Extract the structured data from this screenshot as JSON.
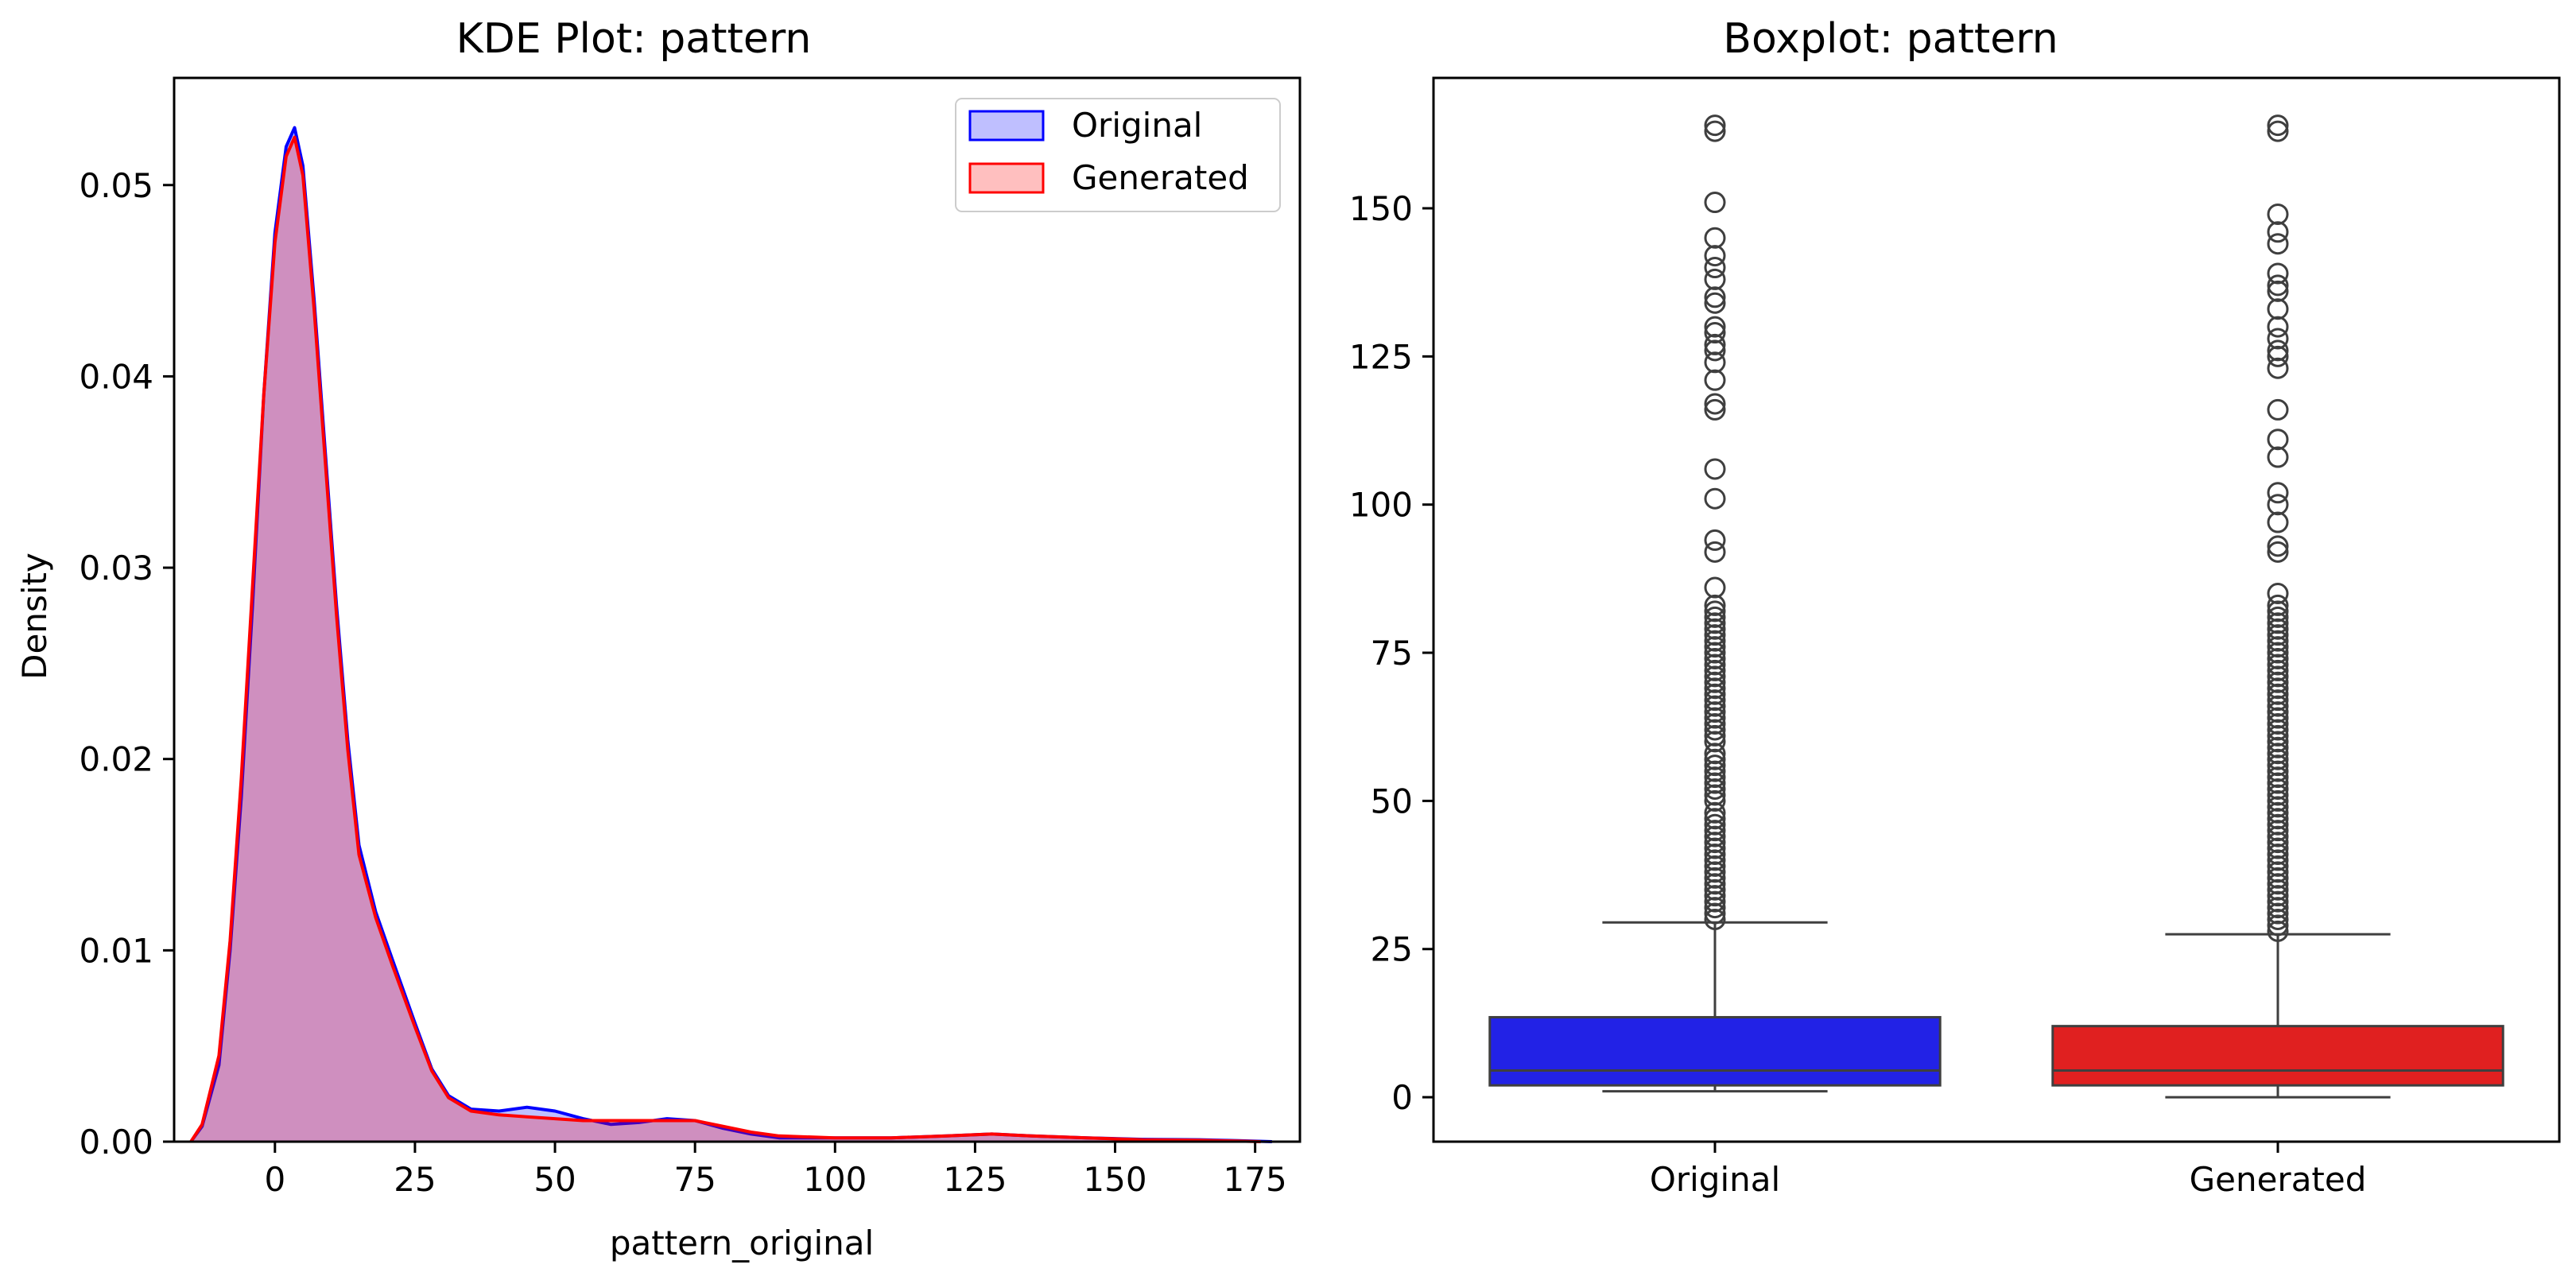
{
  "chart_data": [
    {
      "type": "area",
      "chart_kind": "kde",
      "title": "KDE Plot: pattern",
      "xlabel": "pattern_original",
      "ylabel": "Density",
      "xlim": [
        -18,
        183
      ],
      "ylim": [
        0,
        0.0556
      ],
      "xticks": [
        0,
        25,
        50,
        75,
        100,
        125,
        150,
        175
      ],
      "yticks": [
        0.0,
        0.01,
        0.02,
        0.03,
        0.04,
        0.05
      ],
      "ytick_labels": [
        "0.00",
        "0.01",
        "0.02",
        "0.03",
        "0.04",
        "0.05"
      ],
      "grid": false,
      "legend": {
        "placement": "top-right",
        "entries": [
          "Original",
          "Generated"
        ]
      },
      "series": [
        {
          "name": "Original",
          "color": "#0000ff",
          "fill": "rgba(0,0,255,0.25)",
          "points": [
            [
              -15,
              0
            ],
            [
              -13,
              0.0008
            ],
            [
              -10,
              0.004
            ],
            [
              -8,
              0.01
            ],
            [
              -6,
              0.018
            ],
            [
              -4,
              0.028
            ],
            [
              -2,
              0.039
            ],
            [
              0,
              0.0475
            ],
            [
              2,
              0.052
            ],
            [
              3.5,
              0.053
            ],
            [
              5,
              0.051
            ],
            [
              7,
              0.044
            ],
            [
              9,
              0.036
            ],
            [
              11,
              0.028
            ],
            [
              13,
              0.021
            ],
            [
              15,
              0.0155
            ],
            [
              18,
              0.012
            ],
            [
              21,
              0.0095
            ],
            [
              25,
              0.0062
            ],
            [
              28,
              0.0038
            ],
            [
              31,
              0.0024
            ],
            [
              35,
              0.0017
            ],
            [
              40,
              0.0016
            ],
            [
              45,
              0.0018
            ],
            [
              50,
              0.0016
            ],
            [
              55,
              0.0012
            ],
            [
              60,
              0.0009
            ],
            [
              65,
              0.001
            ],
            [
              70,
              0.0012
            ],
            [
              75,
              0.0011
            ],
            [
              80,
              0.0007
            ],
            [
              85,
              0.0004
            ],
            [
              90,
              0.0002
            ],
            [
              100,
              0.0002
            ],
            [
              110,
              0.0002
            ],
            [
              120,
              0.0003
            ],
            [
              128,
              0.0004
            ],
            [
              135,
              0.0003
            ],
            [
              145,
              0.0002
            ],
            [
              155,
              0.00012
            ],
            [
              165,
              0.0001
            ],
            [
              172,
              5e-05
            ],
            [
              178,
              0
            ]
          ]
        },
        {
          "name": "Generated",
          "color": "#ff0000",
          "fill": "rgba(255,0,0,0.25)",
          "points": [
            [
              -15,
              0
            ],
            [
              -13,
              0.0009
            ],
            [
              -10,
              0.0045
            ],
            [
              -8,
              0.0105
            ],
            [
              -6,
              0.019
            ],
            [
              -4,
              0.029
            ],
            [
              -2,
              0.039
            ],
            [
              0,
              0.047
            ],
            [
              2,
              0.0515
            ],
            [
              3.5,
              0.0525
            ],
            [
              5,
              0.0505
            ],
            [
              7,
              0.0435
            ],
            [
              9,
              0.0355
            ],
            [
              11,
              0.0275
            ],
            [
              13,
              0.0205
            ],
            [
              15,
              0.015
            ],
            [
              18,
              0.0117
            ],
            [
              21,
              0.0092
            ],
            [
              25,
              0.006
            ],
            [
              28,
              0.0037
            ],
            [
              31,
              0.0023
            ],
            [
              35,
              0.0016
            ],
            [
              40,
              0.0014
            ],
            [
              45,
              0.0013
            ],
            [
              50,
              0.0012
            ],
            [
              55,
              0.0011
            ],
            [
              60,
              0.0011
            ],
            [
              65,
              0.0011
            ],
            [
              70,
              0.0011
            ],
            [
              75,
              0.0011
            ],
            [
              80,
              0.0008
            ],
            [
              85,
              0.0005
            ],
            [
              90,
              0.0003
            ],
            [
              100,
              0.0002
            ],
            [
              110,
              0.0002
            ],
            [
              120,
              0.0003
            ],
            [
              128,
              0.0004
            ],
            [
              135,
              0.0003
            ],
            [
              145,
              0.0002
            ],
            [
              155,
              0.0001
            ],
            [
              165,
              7e-05
            ],
            [
              172,
              3e-05
            ],
            [
              176,
              0
            ]
          ]
        }
      ]
    },
    {
      "type": "boxplot",
      "title": "Boxplot: pattern",
      "xlabel": "",
      "ylabel": "",
      "ylim": [
        -7.5,
        172
      ],
      "yticks": [
        0,
        25,
        50,
        75,
        100,
        125,
        150
      ],
      "categories": [
        "Original",
        "Generated"
      ],
      "grid": false,
      "series": [
        {
          "name": "Original",
          "color": "#2222e6",
          "whisker_low": 1,
          "q1": 2,
          "median": 4.5,
          "q3": 13.5,
          "whisker_high": 29.5,
          "outliers": [
            30,
            31,
            32,
            33,
            34,
            35,
            36,
            37,
            38,
            39,
            40,
            41,
            42,
            43,
            44,
            45,
            46,
            47,
            48,
            50,
            51,
            52,
            53,
            54,
            55,
            56,
            57,
            58,
            60,
            61,
            62,
            63,
            64,
            65,
            66,
            67,
            68,
            69,
            70,
            71,
            72,
            73,
            74,
            75,
            76,
            77,
            78,
            79,
            80,
            81,
            82,
            83,
            86,
            92,
            94,
            101,
            106,
            116,
            117,
            121,
            124,
            126,
            127,
            129,
            130,
            134,
            135,
            138,
            140,
            142,
            145,
            151,
            163,
            164
          ]
        },
        {
          "name": "Generated",
          "color": "#e02020",
          "whisker_low": 0,
          "q1": 2,
          "median": 4.5,
          "q3": 12,
          "whisker_high": 27.5,
          "outliers": [
            28,
            29,
            30,
            31,
            32,
            33,
            34,
            35,
            36,
            37,
            38,
            39,
            40,
            41,
            42,
            43,
            44,
            45,
            46,
            47,
            48,
            49,
            50,
            51,
            52,
            53,
            54,
            55,
            56,
            57,
            58,
            59,
            60,
            61,
            62,
            63,
            64,
            65,
            66,
            67,
            68,
            69,
            70,
            71,
            72,
            73,
            74,
            75,
            76,
            77,
            78,
            79,
            80,
            81,
            82,
            83,
            85,
            92,
            93,
            97,
            100,
            102,
            108,
            111,
            116,
            123,
            125,
            126,
            128,
            130,
            133,
            136,
            137,
            139,
            144,
            146,
            149,
            163,
            164
          ]
        }
      ]
    }
  ]
}
